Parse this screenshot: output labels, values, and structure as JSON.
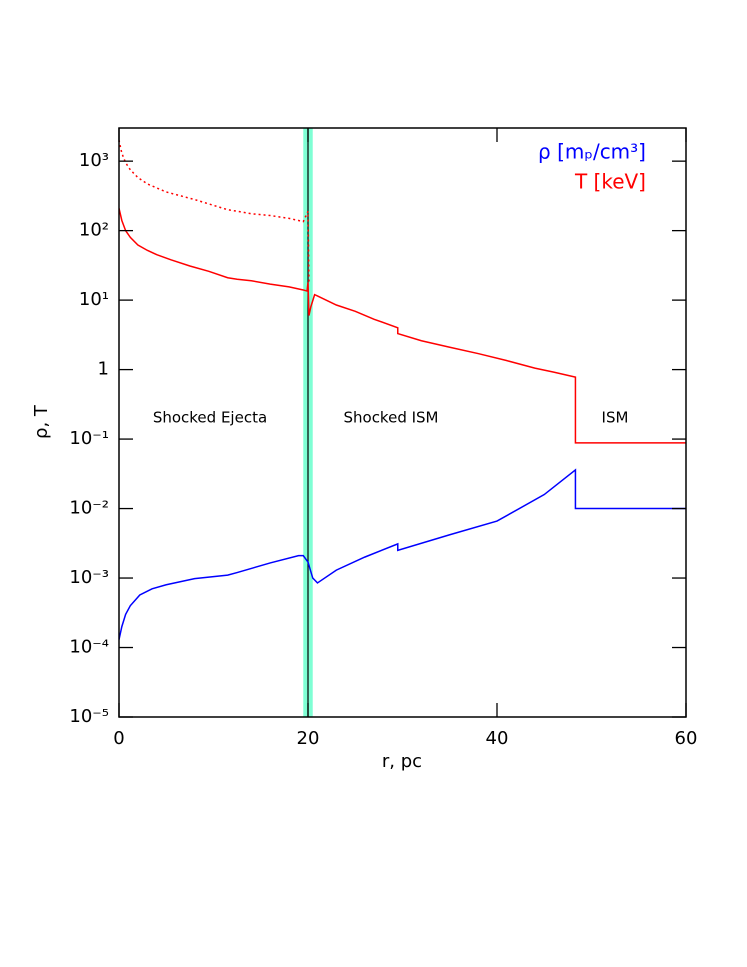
{
  "chart_data": {
    "type": "line",
    "log_y": true,
    "legend": "upper right",
    "xlabel": "r, pc",
    "ylabel": "ρ, T",
    "xlim": [
      0,
      60
    ],
    "xticks": [
      0,
      20,
      40,
      60
    ],
    "ylim": [
      1e-05,
      3000
    ],
    "yticks": [
      {
        "value": 1e-05,
        "label": "10⁻⁵"
      },
      {
        "value": 0.0001,
        "label": "10⁻⁴"
      },
      {
        "value": 0.001,
        "label": "10⁻³"
      },
      {
        "value": 0.01,
        "label": "10⁻²"
      },
      {
        "value": 0.1,
        "label": "10⁻¹"
      },
      1,
      {
        "value": 10,
        "label": "10¹"
      },
      {
        "value": 100,
        "label": "10²"
      },
      {
        "value": 1000,
        "label": "10³"
      }
    ],
    "band": {
      "x": [
        19.5,
        20.5
      ],
      "color": "#7fffd4"
    },
    "annotations": [
      "Shocked Ejecta",
      "Shocked ISM",
      "ISM"
    ],
    "series": [
      {
        "name": "ρ [mₚ/cm³]",
        "color": "#0000ff",
        "dash": false,
        "x": [
          0,
          0.3,
          0.7,
          1.2,
          2.2,
          3.5,
          5,
          8,
          11.5,
          12.5,
          16,
          19,
          19.5,
          20,
          20.5,
          21,
          23,
          26,
          29.5,
          29.5,
          35,
          40,
          45,
          48.3,
          48.3,
          50,
          55,
          60
        ],
        "values": [
          0.00013,
          0.0002,
          0.0003,
          0.0004,
          0.00057,
          0.0007,
          0.0008,
          0.00098,
          0.0011,
          0.0012,
          0.00165,
          0.0021,
          0.0021,
          0.0017,
          0.001,
          0.00085,
          0.0013,
          0.002,
          0.0031,
          0.0025,
          0.0042,
          0.0066,
          0.0159,
          0.036,
          0.01,
          0.01,
          0.01,
          0.01
        ]
      },
      {
        "name": "T [keV]",
        "color": "#ff0000",
        "dash": false,
        "x": [
          0,
          0.3,
          0.7,
          1.2,
          2,
          3,
          4,
          5.5,
          7.5,
          9.5,
          11.5,
          12.5,
          14,
          16,
          18,
          19.5,
          19.9,
          20.0,
          20.1,
          20.3,
          20.7,
          21,
          23,
          25,
          27,
          29.5,
          29.5,
          32,
          35,
          38,
          41,
          44,
          46,
          48.3,
          48.3,
          50,
          55,
          60
        ],
        "values": [
          210,
          140,
          100,
          80,
          62,
          52,
          45,
          38,
          31,
          26,
          21,
          20,
          19,
          17,
          15.5,
          14,
          13.5,
          18,
          6,
          8,
          12,
          11.5,
          8.5,
          6.9,
          5.3,
          4,
          3.3,
          2.6,
          2.1,
          1.7,
          1.35,
          1.05,
          0.92,
          0.78,
          0.088,
          0.088,
          0.088,
          0.088
        ]
      },
      {
        "color": "#ff0000",
        "dash": true,
        "x": [
          0,
          0.3,
          0.7,
          1.2,
          2,
          3,
          5,
          8,
          11.5,
          12.5,
          14,
          16,
          18,
          19.5,
          20,
          20.1
        ],
        "values": [
          2000,
          1300,
          950,
          750,
          580,
          470,
          360,
          280,
          200,
          190,
          175,
          165,
          150,
          135,
          190,
          18
        ]
      }
    ]
  }
}
